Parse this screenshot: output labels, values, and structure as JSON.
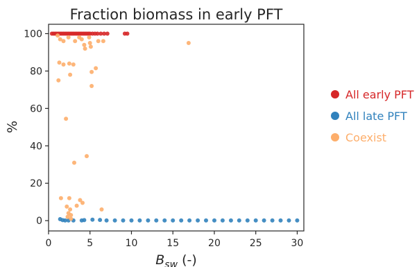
{
  "chart_data": {
    "type": "scatter",
    "title": "Fraction biomass in early PFT",
    "xlabel": {
      "main": "B",
      "sub": "sw",
      "suffix": " (-)"
    },
    "ylabel": "%",
    "xlim": [
      0,
      30.8
    ],
    "ylim": [
      -5.5,
      105
    ],
    "xticks": [
      0,
      5,
      10,
      15,
      20,
      25,
      30
    ],
    "yticks": [
      0,
      20,
      40,
      60,
      80,
      100
    ],
    "grid": false,
    "legend_position": "right",
    "series": [
      {
        "name": "All early PFT",
        "color": "#d62728",
        "points": [
          [
            0.4,
            100
          ],
          [
            0.6,
            100
          ],
          [
            0.8,
            100
          ],
          [
            1.0,
            100
          ],
          [
            1.2,
            100
          ],
          [
            1.4,
            100
          ],
          [
            1.6,
            100
          ],
          [
            1.8,
            100
          ],
          [
            2.0,
            100
          ],
          [
            2.2,
            100
          ],
          [
            2.4,
            100
          ],
          [
            2.6,
            100
          ],
          [
            2.8,
            100
          ],
          [
            3.0,
            100
          ],
          [
            3.2,
            100
          ],
          [
            3.4,
            100
          ],
          [
            3.6,
            100
          ],
          [
            3.8,
            100
          ],
          [
            4.0,
            100
          ],
          [
            4.2,
            100
          ],
          [
            4.4,
            100
          ],
          [
            4.6,
            100
          ],
          [
            4.8,
            100
          ],
          [
            5.0,
            100
          ],
          [
            5.3,
            100
          ],
          [
            5.6,
            100
          ],
          [
            5.9,
            100
          ],
          [
            6.3,
            100
          ],
          [
            6.7,
            100
          ],
          [
            7.1,
            100
          ],
          [
            9.2,
            100
          ],
          [
            9.5,
            100
          ]
        ]
      },
      {
        "name": "All late PFT",
        "color": "#3182bd",
        "points": [
          [
            1.4,
            0.8
          ],
          [
            1.7,
            0.3
          ],
          [
            2.0,
            0.1
          ],
          [
            2.4,
            0.1
          ],
          [
            3.0,
            0.1
          ],
          [
            4.0,
            0.1
          ],
          [
            4.3,
            0.3
          ],
          [
            5.3,
            0.5
          ],
          [
            6.2,
            0.4
          ],
          [
            7.0,
            0.1
          ],
          [
            8.0,
            0.1
          ],
          [
            9.0,
            0.1
          ],
          [
            10.0,
            0.1
          ],
          [
            11.0,
            0.1
          ],
          [
            12.0,
            0.1
          ],
          [
            13.0,
            0.1
          ],
          [
            14.0,
            0.1
          ],
          [
            15.0,
            0.1
          ],
          [
            16.0,
            0.1
          ],
          [
            17.0,
            0.1
          ],
          [
            18.0,
            0.1
          ],
          [
            19.0,
            0.1
          ],
          [
            20.0,
            0.1
          ],
          [
            21.0,
            0.1
          ],
          [
            22.0,
            0.1
          ],
          [
            23.0,
            0.1
          ],
          [
            24.0,
            0.1
          ],
          [
            25.0,
            0.1
          ],
          [
            26.0,
            0.1
          ],
          [
            27.0,
            0.1
          ],
          [
            28.0,
            0.1
          ],
          [
            29.0,
            0.1
          ],
          [
            30.0,
            0.1
          ]
        ]
      },
      {
        "name": "Coexist",
        "color": "#fdae6b",
        "points": [
          [
            1.1,
            99
          ],
          [
            1.4,
            97
          ],
          [
            1.8,
            96
          ],
          [
            2.4,
            98
          ],
          [
            3.2,
            96
          ],
          [
            3.7,
            98
          ],
          [
            4.0,
            97
          ],
          [
            4.3,
            94
          ],
          [
            4.4,
            92
          ],
          [
            4.9,
            98
          ],
          [
            5.0,
            95
          ],
          [
            6.0,
            96
          ],
          [
            6.6,
            96
          ],
          [
            16.9,
            95
          ],
          [
            5.1,
            93
          ],
          [
            1.2,
            75
          ],
          [
            1.3,
            84.5
          ],
          [
            1.8,
            83.5
          ],
          [
            2.5,
            84
          ],
          [
            3.0,
            83.5
          ],
          [
            2.6,
            78
          ],
          [
            5.2,
            79.5
          ],
          [
            5.7,
            81.5
          ],
          [
            5.2,
            72
          ],
          [
            2.1,
            54.5
          ],
          [
            4.6,
            34.5
          ],
          [
            3.1,
            31
          ],
          [
            1.5,
            12
          ],
          [
            2.5,
            12
          ],
          [
            3.8,
            11
          ],
          [
            4.1,
            9.5
          ],
          [
            2.2,
            7.5
          ],
          [
            2.6,
            6
          ],
          [
            3.4,
            8
          ],
          [
            6.4,
            6
          ],
          [
            2.4,
            4
          ],
          [
            2.7,
            3
          ],
          [
            2.3,
            2
          ],
          [
            2.7,
            1
          ]
        ]
      }
    ]
  }
}
